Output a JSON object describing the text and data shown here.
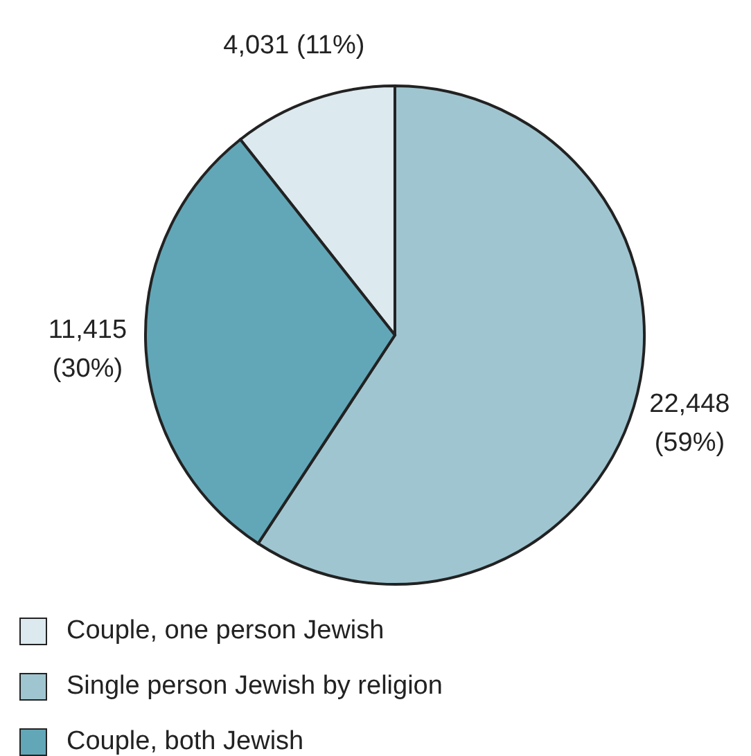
{
  "chart_data": {
    "type": "pie",
    "categories": [
      "Couple, one person Jewish",
      "Single person Jewish by religion",
      "Couple, both Jewish"
    ],
    "values": [
      4031,
      22448,
      11415
    ],
    "value_labels": [
      "4,031 (11%)",
      "22,448 (59%)",
      "11,415 (30%)"
    ],
    "colors": [
      "#dce9ee",
      "#9fc5d0",
      "#62a7b8"
    ],
    "legend": "bottom left"
  }
}
